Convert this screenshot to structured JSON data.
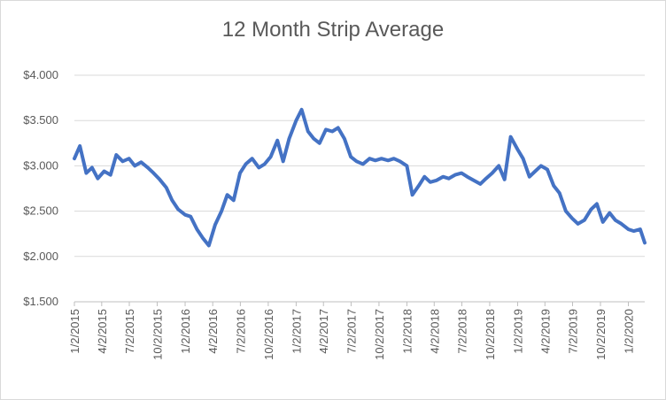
{
  "chart_data": {
    "type": "line",
    "title": "12 Month Strip Average",
    "xlabel": "",
    "ylabel": "",
    "ylim": [
      1.5,
      4.0
    ],
    "y_ticks": [
      "$1.500",
      "$2.000",
      "$2.500",
      "$3.000",
      "$3.500",
      "$4.000"
    ],
    "x_ticks": [
      "1/2/2015",
      "4/2/2015",
      "7/2/2015",
      "10/2/2015",
      "1/2/2016",
      "4/2/2016",
      "7/2/2016",
      "10/2/2016",
      "1/2/2017",
      "4/2/2017",
      "7/2/2017",
      "10/2/2017",
      "1/2/2018",
      "4/2/2018",
      "7/2/2018",
      "10/2/2018",
      "1/2/2019",
      "4/2/2019",
      "7/2/2019",
      "10/2/2019",
      "1/2/2020"
    ],
    "grid": true,
    "line_color": "#4472c4",
    "series": [
      {
        "x": [
          "2015-01-02",
          "2015-01-20",
          "2015-02-10",
          "2015-03-01",
          "2015-03-20",
          "2015-04-10",
          "2015-05-01",
          "2015-05-20",
          "2015-06-10",
          "2015-07-01",
          "2015-07-20",
          "2015-08-10",
          "2015-09-01",
          "2015-09-20",
          "2015-10-10",
          "2015-11-01",
          "2015-11-20",
          "2015-12-10",
          "2016-01-02",
          "2016-01-20",
          "2016-02-10",
          "2016-03-01",
          "2016-03-20",
          "2016-04-10",
          "2016-05-01",
          "2016-05-20",
          "2016-06-10",
          "2016-07-01",
          "2016-07-20",
          "2016-08-10",
          "2016-09-01",
          "2016-09-20",
          "2016-10-10",
          "2016-11-01",
          "2016-11-20",
          "2016-12-10",
          "2017-01-02",
          "2017-01-20",
          "2017-02-10",
          "2017-03-01",
          "2017-03-20",
          "2017-04-10",
          "2017-05-01",
          "2017-05-20",
          "2017-06-10",
          "2017-07-01",
          "2017-07-20",
          "2017-08-10",
          "2017-09-01",
          "2017-09-20",
          "2017-10-10",
          "2017-11-01",
          "2017-11-20",
          "2017-12-10",
          "2018-01-02",
          "2018-01-20",
          "2018-02-10",
          "2018-03-01",
          "2018-03-20",
          "2018-04-10",
          "2018-05-01",
          "2018-05-20",
          "2018-06-10",
          "2018-07-01",
          "2018-07-20",
          "2018-08-10",
          "2018-09-01",
          "2018-09-20",
          "2018-10-10",
          "2018-11-01",
          "2018-11-20",
          "2018-12-10",
          "2019-01-02",
          "2019-01-20",
          "2019-02-10",
          "2019-03-01",
          "2019-03-20",
          "2019-04-10",
          "2019-05-01",
          "2019-05-20",
          "2019-06-10",
          "2019-07-01",
          "2019-07-20",
          "2019-08-10",
          "2019-09-01",
          "2019-09-20",
          "2019-10-10",
          "2019-11-01",
          "2019-11-20",
          "2019-12-10",
          "2020-01-02",
          "2020-01-20",
          "2020-02-10",
          "2020-02-25"
        ],
        "values": [
          3.08,
          3.22,
          2.92,
          2.98,
          2.86,
          2.94,
          2.9,
          3.12,
          3.05,
          3.08,
          3.0,
          3.04,
          2.98,
          2.92,
          2.85,
          2.76,
          2.62,
          2.52,
          2.46,
          2.44,
          2.3,
          2.2,
          2.12,
          2.35,
          2.5,
          2.68,
          2.62,
          2.92,
          3.02,
          3.08,
          2.98,
          3.02,
          3.1,
          3.28,
          3.05,
          3.3,
          3.5,
          3.62,
          3.38,
          3.3,
          3.25,
          3.4,
          3.38,
          3.42,
          3.3,
          3.1,
          3.05,
          3.02,
          3.08,
          3.06,
          3.08,
          3.06,
          3.08,
          3.05,
          3.0,
          2.68,
          2.78,
          2.88,
          2.82,
          2.84,
          2.88,
          2.86,
          2.9,
          2.92,
          2.88,
          2.84,
          2.8,
          2.86,
          2.92,
          3.0,
          2.85,
          3.32,
          3.18,
          3.08,
          2.88,
          2.94,
          3.0,
          2.96,
          2.78,
          2.7,
          2.5,
          2.42,
          2.36,
          2.4,
          2.52,
          2.58,
          2.38,
          2.48,
          2.4,
          2.36,
          2.3,
          2.28,
          2.3,
          2.15
        ]
      }
    ]
  }
}
